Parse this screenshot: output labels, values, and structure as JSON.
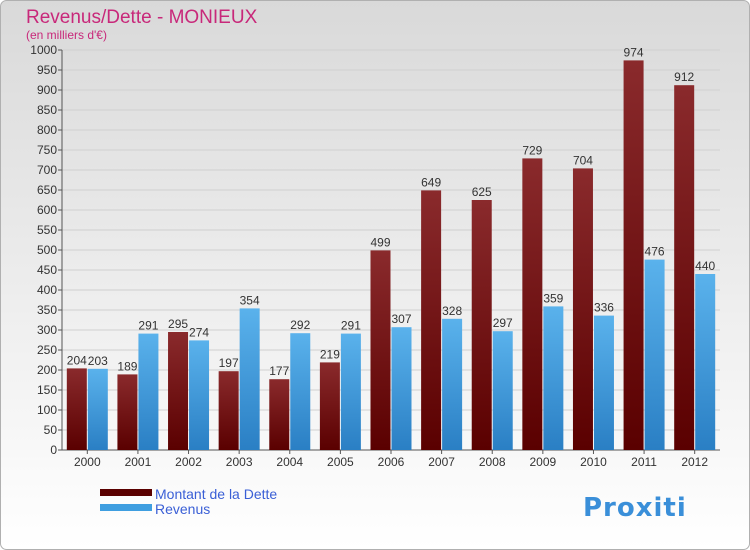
{
  "chart_data": {
    "type": "bar",
    "title": "Revenus/Dette - MONIEUX",
    "subtitle": "(en milliers d'€)",
    "categories": [
      "2000",
      "2001",
      "2002",
      "2003",
      "2004",
      "2005",
      "2006",
      "2007",
      "2008",
      "2009",
      "2010",
      "2011",
      "2012"
    ],
    "series": [
      {
        "name": "Montant de la Dette",
        "color": "#7a1518",
        "values": [
          204,
          189,
          295,
          197,
          177,
          219,
          499,
          649,
          625,
          729,
          704,
          974,
          912
        ]
      },
      {
        "name": "Revenus",
        "color": "#3f9ee0",
        "values": [
          203,
          291,
          274,
          354,
          292,
          291,
          307,
          328,
          297,
          359,
          336,
          476,
          440
        ]
      }
    ],
    "ylim": [
      0,
      1000
    ],
    "yticks": [
      0,
      50,
      100,
      150,
      200,
      250,
      300,
      350,
      400,
      450,
      500,
      550,
      600,
      650,
      700,
      750,
      800,
      850,
      900,
      950,
      1000
    ],
    "grid": true,
    "legend": "bottom-left",
    "logo_text": "Proxiti",
    "colors": {
      "title": "#c8287a",
      "legend_text": "#3a5fd6",
      "grid": "#d0d0d0",
      "frame": "#b0b0b0",
      "background_top": "#d9d9d9",
      "background_bottom": "#ffffff"
    }
  }
}
